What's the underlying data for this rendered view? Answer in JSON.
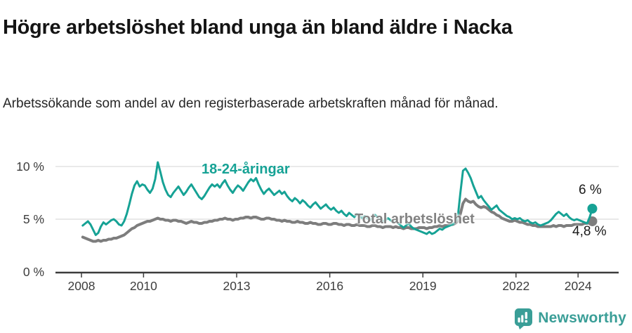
{
  "header": {
    "title": "Högre arbetslöshet bland unga än bland äldre i Nacka",
    "subtitle": "Arbetssökande som andel av den registerbaserade arbetskraften månad för månad."
  },
  "chart_data": {
    "type": "line",
    "title": "Högre arbetslöshet bland unga än bland äldre i Nacka",
    "x_start": "2008-01",
    "x_end": "2024-06",
    "x_interval": "monthly",
    "xticks": [
      2008,
      2010,
      2013,
      2016,
      2019,
      2022,
      2024
    ],
    "ytick_labels": [
      "0 %",
      "5 %",
      "10 %"
    ],
    "ytick_values": [
      0,
      5,
      10
    ],
    "ylim": [
      0,
      10.6
    ],
    "grid": "horizontal",
    "legend_position": "inline-labels",
    "series": [
      {
        "name": "18-24-åringar",
        "color": "#16a295",
        "end_label": "6 %",
        "end_value": 6.0,
        "values": [
          4.4,
          4.6,
          4.8,
          4.5,
          4.0,
          3.5,
          3.7,
          4.3,
          4.7,
          4.5,
          4.7,
          4.9,
          5.0,
          4.8,
          4.5,
          4.4,
          4.8,
          5.5,
          6.4,
          7.4,
          8.2,
          8.6,
          8.1,
          8.3,
          8.2,
          7.8,
          7.5,
          7.9,
          8.8,
          10.4,
          9.5,
          8.5,
          7.8,
          7.3,
          7.1,
          7.5,
          7.8,
          8.1,
          7.7,
          7.3,
          7.6,
          8.0,
          8.3,
          7.9,
          7.5,
          7.1,
          6.9,
          7.2,
          7.6,
          8.0,
          8.3,
          8.1,
          8.3,
          8.0,
          8.4,
          8.7,
          8.2,
          7.8,
          7.5,
          7.9,
          8.2,
          8.0,
          7.7,
          8.1,
          8.5,
          8.8,
          8.6,
          8.9,
          8.3,
          7.8,
          7.4,
          7.7,
          7.9,
          7.6,
          7.3,
          7.5,
          7.7,
          7.4,
          7.6,
          7.2,
          6.9,
          6.7,
          7.0,
          6.8,
          6.5,
          6.8,
          6.6,
          6.3,
          6.1,
          6.4,
          6.6,
          6.3,
          6.0,
          6.2,
          6.4,
          6.1,
          5.9,
          6.1,
          5.8,
          5.6,
          5.8,
          5.5,
          5.3,
          5.6,
          5.4,
          5.2,
          5.5,
          5.3,
          5.1,
          5.3,
          5.1,
          4.9,
          5.1,
          5.4,
          5.2,
          5.0,
          4.8,
          4.9,
          5.1,
          4.9,
          4.7,
          4.9,
          4.6,
          4.4,
          4.2,
          4.4,
          4.6,
          4.3,
          4.1,
          4.0,
          3.9,
          3.8,
          3.7,
          3.6,
          3.8,
          3.6,
          3.7,
          3.9,
          4.1,
          4.0,
          4.2,
          4.3,
          4.4,
          4.5,
          4.7,
          5.2,
          7.5,
          9.6,
          9.8,
          9.4,
          8.9,
          8.2,
          7.6,
          7.0,
          7.2,
          6.8,
          6.5,
          6.2,
          5.9,
          6.1,
          6.3,
          5.9,
          5.7,
          5.5,
          5.3,
          5.2,
          5.0,
          5.1,
          5.0,
          5.1,
          4.9,
          4.8,
          4.9,
          4.7,
          4.6,
          4.7,
          4.5,
          4.4,
          4.5,
          4.6,
          4.7,
          4.9,
          5.2,
          5.5,
          5.7,
          5.5,
          5.3,
          5.5,
          5.2,
          5.0,
          4.9,
          5.0,
          4.9,
          4.8,
          4.7,
          4.6,
          5.2,
          6.0
        ]
      },
      {
        "name": "Total arbetslöshet",
        "color": "#7d7d7d",
        "end_label": "4,8 %",
        "end_value": 4.8,
        "values": [
          3.3,
          3.2,
          3.1,
          3.0,
          2.9,
          2.9,
          3.0,
          2.9,
          3.0,
          3.0,
          3.1,
          3.1,
          3.2,
          3.2,
          3.3,
          3.4,
          3.5,
          3.7,
          3.9,
          4.1,
          4.2,
          4.4,
          4.5,
          4.6,
          4.7,
          4.8,
          4.8,
          4.9,
          5.0,
          5.1,
          5.0,
          5.0,
          4.9,
          4.9,
          4.8,
          4.9,
          4.9,
          4.8,
          4.8,
          4.7,
          4.6,
          4.7,
          4.8,
          4.7,
          4.7,
          4.6,
          4.6,
          4.7,
          4.7,
          4.8,
          4.8,
          4.9,
          4.9,
          5.0,
          5.0,
          5.1,
          5.0,
          5.0,
          4.9,
          5.0,
          5.0,
          5.1,
          5.1,
          5.2,
          5.2,
          5.1,
          5.2,
          5.2,
          5.1,
          5.0,
          5.0,
          5.1,
          5.1,
          5.0,
          5.0,
          4.9,
          4.9,
          4.8,
          4.9,
          4.8,
          4.8,
          4.7,
          4.7,
          4.8,
          4.7,
          4.7,
          4.6,
          4.6,
          4.7,
          4.6,
          4.6,
          4.5,
          4.5,
          4.6,
          4.6,
          4.5,
          4.5,
          4.6,
          4.6,
          4.5,
          4.5,
          4.4,
          4.5,
          4.5,
          4.4,
          4.4,
          4.5,
          4.4,
          4.4,
          4.4,
          4.3,
          4.3,
          4.4,
          4.4,
          4.3,
          4.3,
          4.2,
          4.3,
          4.3,
          4.3,
          4.2,
          4.3,
          4.2,
          4.2,
          4.1,
          4.2,
          4.2,
          4.1,
          4.1,
          4.1,
          4.2,
          4.2,
          4.2,
          4.1,
          4.2,
          4.2,
          4.3,
          4.3,
          4.4,
          4.3,
          4.4,
          4.4,
          4.5,
          4.5,
          4.6,
          4.8,
          5.5,
          6.5,
          6.9,
          6.7,
          6.6,
          6.7,
          6.4,
          6.2,
          6.1,
          6.2,
          6.1,
          5.9,
          5.7,
          5.6,
          5.4,
          5.3,
          5.1,
          5.0,
          4.9,
          4.8,
          4.8,
          4.9,
          4.8,
          4.7,
          4.7,
          4.6,
          4.5,
          4.5,
          4.4,
          4.4,
          4.3,
          4.3,
          4.3,
          4.3,
          4.3,
          4.3,
          4.4,
          4.3,
          4.4,
          4.4,
          4.3,
          4.4,
          4.4,
          4.4,
          4.5,
          4.5,
          4.5,
          4.5,
          4.6,
          4.6,
          4.7,
          4.8
        ]
      }
    ],
    "colors": {
      "grid": "#dcdcdc",
      "axis": "#3c3c3c",
      "tick_text": "#3d3d3d"
    }
  },
  "footer": {
    "brand": "Newsworthy",
    "brand_color": "#3a9e97"
  }
}
